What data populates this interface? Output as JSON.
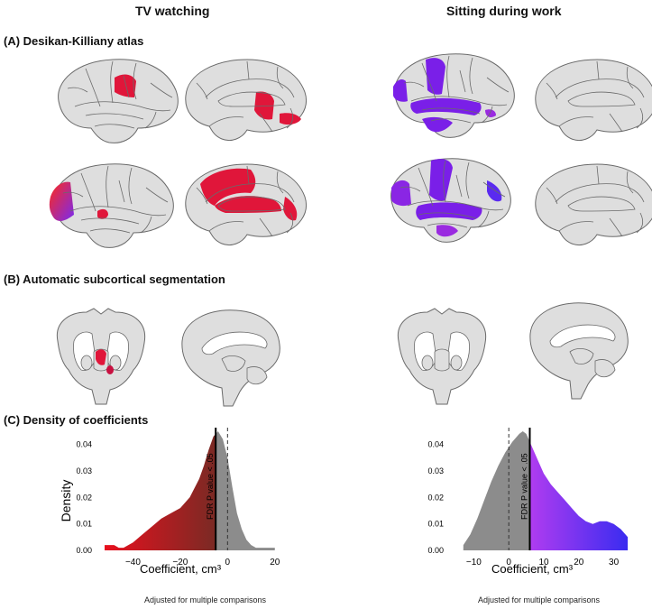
{
  "columns": {
    "left": "TV watching",
    "right": "Sitting during work"
  },
  "sections": {
    "a": "(A)  Desikan-Killiany atlas",
    "b": "(B)  Automatic subcortical segmentation",
    "c": "(C)  Density of coefficients"
  },
  "colors": {
    "brain_fill": "#dedede",
    "brain_line": "#6a6a6a",
    "tv_sig_dark": "#7a2a24",
    "tv_sig_bright": "#e8101e",
    "tv_region": "#e0163a",
    "work_sig_light": "#b03cf0",
    "work_sig_dark": "#3a2cf0",
    "work_region": "#7a1fe8",
    "nonsig": "#8c8c8c"
  },
  "chart_data": [
    {
      "type": "area",
      "title": "TV watching",
      "xlabel": "Coefficient, cm³",
      "ylabel": "Density",
      "caption": "Adjusted for multiple comparisons",
      "xlim": [
        -52,
        22
      ],
      "ylim": [
        0,
        0.045
      ],
      "xticks": [
        -40,
        -20,
        0,
        20
      ],
      "yticks": [
        0.0,
        0.01,
        0.02,
        0.03,
        0.04
      ],
      "threshold_x": -5,
      "threshold_label": "FDR P value < .05",
      "zero_line_x": 0,
      "grid": false,
      "x": [
        -52,
        -48,
        -46,
        -44,
        -40,
        -36,
        -32,
        -28,
        -24,
        -20,
        -16,
        -12,
        -10,
        -8,
        -6,
        -4,
        -2,
        0,
        2,
        4,
        6,
        8,
        10,
        12,
        14,
        16,
        18,
        20
      ],
      "y": [
        0.002,
        0.002,
        0.001,
        0.001,
        0.003,
        0.006,
        0.009,
        0.012,
        0.014,
        0.016,
        0.02,
        0.027,
        0.032,
        0.038,
        0.043,
        0.045,
        0.042,
        0.035,
        0.024,
        0.014,
        0.008,
        0.004,
        0.002,
        0.001,
        0.001,
        0.001,
        0.001,
        0.001
      ]
    },
    {
      "type": "area",
      "title": "Sitting during work",
      "xlabel": "Coefficient, cm³",
      "ylabel": "",
      "caption": "Adjusted for multiple comparisons",
      "xlim": [
        -15,
        35
      ],
      "ylim": [
        0,
        0.045
      ],
      "xticks": [
        -10,
        0,
        10,
        20,
        30
      ],
      "yticks": [
        0.0,
        0.01,
        0.02,
        0.03,
        0.04
      ],
      "threshold_x": 6,
      "threshold_label": "FDR P value < .05",
      "zero_line_x": 0,
      "grid": false,
      "x": [
        -13,
        -11,
        -9,
        -7,
        -5,
        -3,
        -1,
        1,
        3,
        4,
        5,
        6,
        8,
        10,
        12,
        14,
        16,
        18,
        20,
        22,
        24,
        26,
        28,
        30,
        32,
        34
      ],
      "y": [
        0.002,
        0.006,
        0.012,
        0.019,
        0.026,
        0.032,
        0.037,
        0.041,
        0.044,
        0.045,
        0.044,
        0.041,
        0.035,
        0.029,
        0.025,
        0.022,
        0.019,
        0.016,
        0.013,
        0.011,
        0.01,
        0.011,
        0.011,
        0.01,
        0.008,
        0.005
      ]
    }
  ]
}
